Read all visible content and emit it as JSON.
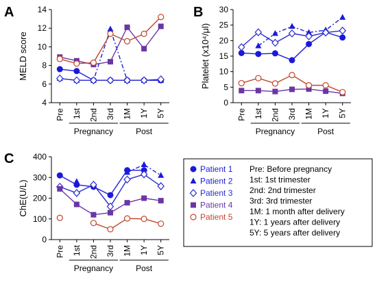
{
  "colors": {
    "p1": "#1a1adb",
    "p2": "#1a1adb",
    "p3": "#2a2ad0",
    "p4": "#6b35a6",
    "p5": "#c0452a"
  },
  "legend": {
    "patients": [
      {
        "key": "p1",
        "label": "Patient 1",
        "marker": "circle-filled",
        "dash": "solid"
      },
      {
        "key": "p2",
        "label": "Patient 2",
        "marker": "triangle-filled",
        "dash": "dashdot"
      },
      {
        "key": "p3",
        "label": "Patient 3",
        "marker": "diamond-open",
        "dash": "solid"
      },
      {
        "key": "p4",
        "label": "Patient 4",
        "marker": "square-filled",
        "dash": "solid"
      },
      {
        "key": "p5",
        "label": "Patient 5",
        "marker": "circle-open",
        "dash": "solid"
      }
    ],
    "abbreviations": [
      "Pre: Before pregnancy",
      "1st: 1st trimester",
      "2nd: 2nd trimester",
      "3rd: 3rd trimester",
      "1M: 1 month after delivery",
      "1Y: 1 years after delivery",
      "5Y: 5 years after delivery"
    ]
  },
  "chart_data": [
    {
      "panel": "A",
      "type": "line",
      "categories": [
        "Pre",
        "1st",
        "2nd",
        "3rd",
        "1M",
        "1Y",
        "5Y"
      ],
      "groups": [
        {
          "label": "Pregnancy",
          "from": 1,
          "to": 3
        },
        {
          "label": "Post",
          "from": 4,
          "to": 6
        }
      ],
      "ylabel": "MELD score",
      "ylim": [
        4,
        14
      ],
      "yticks": [
        4,
        6,
        8,
        10,
        12,
        14
      ],
      "series": [
        {
          "key": "p1",
          "values": [
            7.6,
            7.4,
            6.4,
            6.4,
            6.4,
            6.4,
            6.4
          ]
        },
        {
          "key": "p2",
          "values": [
            6.6,
            6.4,
            6.4,
            11.9,
            6.4,
            6.4,
            6.4
          ]
        },
        {
          "key": "p3",
          "values": [
            6.6,
            6.4,
            6.4,
            6.4,
            6.4,
            6.4,
            6.5
          ]
        },
        {
          "key": "p4",
          "values": [
            8.9,
            8.5,
            8.1,
            8.4,
            12.1,
            9.8,
            12.2
          ]
        },
        {
          "key": "p5",
          "values": [
            8.7,
            8.2,
            8.3,
            11.4,
            10.6,
            11.4,
            13.2
          ]
        }
      ]
    },
    {
      "panel": "B",
      "type": "line",
      "categories": [
        "Pre",
        "1st",
        "2nd",
        "3rd",
        "1M",
        "1Y",
        "5Y"
      ],
      "groups": [
        {
          "label": "Pregnancy",
          "from": 1,
          "to": 3
        },
        {
          "label": "Post",
          "from": 4,
          "to": 6
        }
      ],
      "ylabel": "Platelet (x10⁴/μl)",
      "ylim": [
        0,
        30
      ],
      "yticks": [
        0,
        5,
        10,
        15,
        20,
        25,
        30
      ],
      "series": [
        {
          "key": "p1",
          "values": [
            16.0,
            15.7,
            15.9,
            13.7,
            18.9,
            22.7,
            21.0
          ]
        },
        {
          "key": "p2",
          "values": [
            null,
            18.3,
            22.3,
            24.6,
            22.6,
            23.4,
            27.5
          ]
        },
        {
          "key": "p3",
          "values": [
            17.9,
            22.7,
            19.3,
            22.3,
            21.4,
            22.6,
            23.2
          ]
        },
        {
          "key": "p4",
          "values": [
            3.9,
            3.9,
            3.6,
            4.3,
            4.4,
            3.7,
            3.0
          ]
        },
        {
          "key": "p5",
          "values": [
            6.3,
            7.9,
            6.2,
            8.9,
            5.6,
            5.6,
            3.4
          ]
        }
      ]
    },
    {
      "panel": "C",
      "type": "line",
      "categories": [
        "Pre",
        "1st",
        "2nd",
        "3rd",
        "1M",
        "1Y",
        "5Y"
      ],
      "groups": [
        {
          "label": "Pregnancy",
          "from": 1,
          "to": 3
        },
        {
          "label": "Post",
          "from": 4,
          "to": 6
        }
      ],
      "ylabel": "ChE(U/L)",
      "ylim": [
        0,
        400
      ],
      "yticks": [
        0,
        100,
        200,
        300,
        400
      ],
      "series": [
        {
          "key": "p1",
          "values": [
            310,
            265,
            255,
            215,
            335,
            335,
            null
          ]
        },
        {
          "key": "p2",
          "values": [
            null,
            280,
            null,
            null,
            325,
            362,
            310
          ]
        },
        {
          "key": "p3",
          "values": [
            255,
            225,
            265,
            160,
            290,
            315,
            258
          ]
        },
        {
          "key": "p4",
          "values": [
            245,
            170,
            120,
            130,
            178,
            200,
            188
          ]
        },
        {
          "key": "p5",
          "values": [
            105,
            null,
            80,
            50,
            102,
            100,
            77
          ]
        }
      ]
    }
  ]
}
